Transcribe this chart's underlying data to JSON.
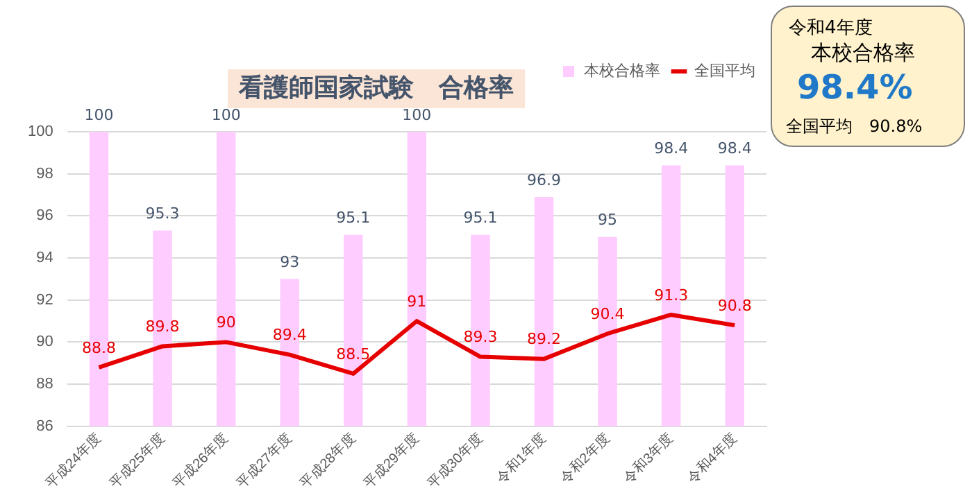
{
  "chart_data": {
    "type": "bar",
    "title": "看護師国家試験　合格率",
    "categories": [
      "平成24年度",
      "平成25年度",
      "平成26年度",
      "平成27年度",
      "平成28年度",
      "平成29年度",
      "平成30年度",
      "令和1年度",
      "令和2年度",
      "令和3年度",
      "令和4年度"
    ],
    "series": [
      {
        "name": "本校合格率",
        "color": "#ffccff",
        "values": [
          100,
          95.3,
          100,
          93,
          95.1,
          100,
          95.1,
          96.9,
          95,
          98.4,
          98.4
        ]
      },
      {
        "name": "全国平均",
        "type": "line",
        "color": "#e60000",
        "values": [
          88.8,
          89.8,
          90,
          89.4,
          88.5,
          91,
          89.3,
          89.2,
          90.4,
          91.3,
          90.8
        ]
      }
    ],
    "ylim": [
      86,
      100
    ],
    "yticks": [
      86,
      88,
      90,
      92,
      94,
      96,
      98,
      100
    ],
    "grid": "y",
    "legend": "top right",
    "data_labels": true,
    "marker": "none",
    "annotations": [
      "令和4年度",
      "本校合格率",
      "98.4%",
      "全国平均　90.8%"
    ]
  }
}
